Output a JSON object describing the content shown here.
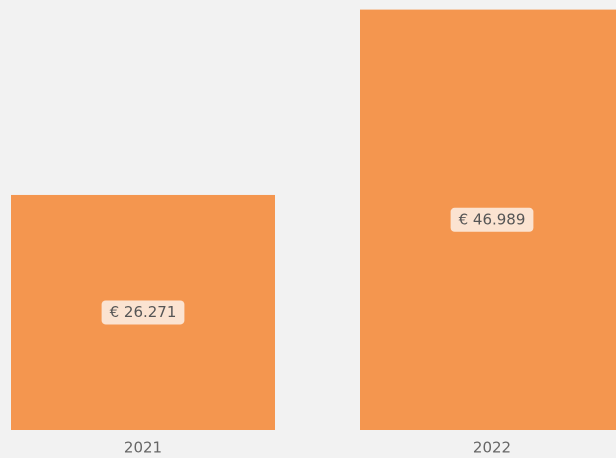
{
  "chart_data": {
    "type": "bar",
    "categories": [
      "2021",
      "2022"
    ],
    "values": [
      26271,
      46989
    ],
    "value_labels": [
      "€ 26.271",
      "€ 46.989"
    ],
    "color": "#f4964f",
    "ylim": [
      0,
      47000
    ]
  }
}
